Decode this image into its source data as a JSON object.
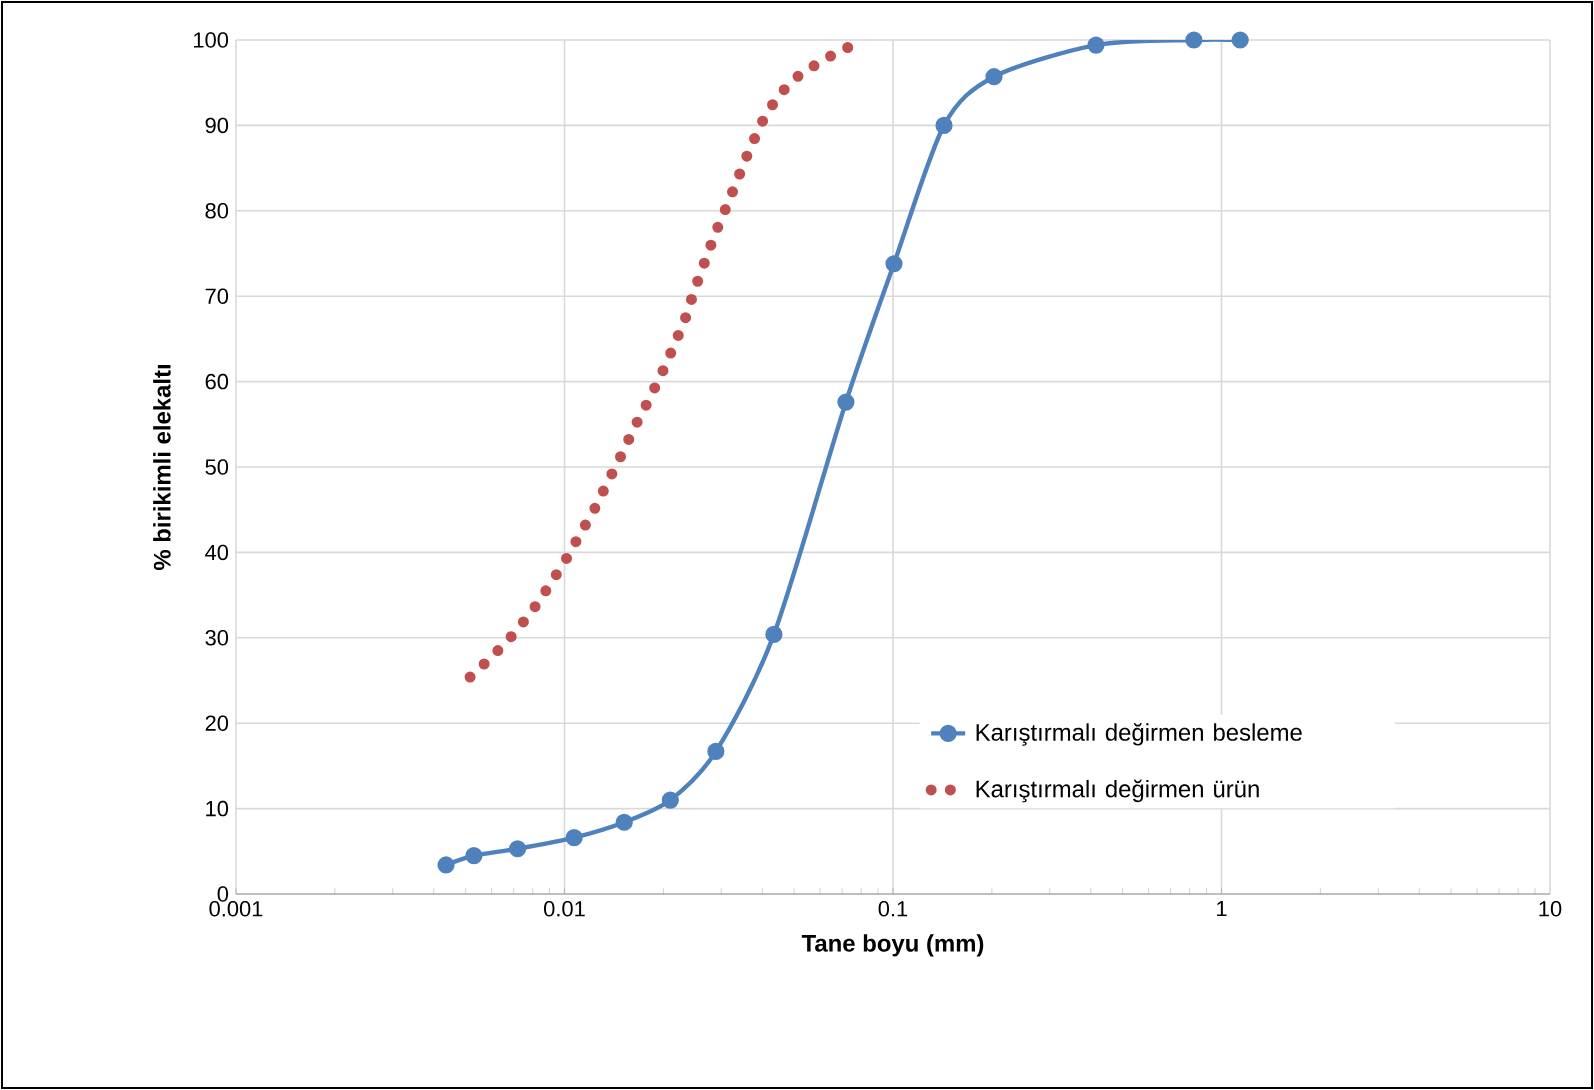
{
  "chart_data": {
    "type": "line",
    "xlabel": "Tane boyu (mm)",
    "ylabel": "% birikimli elekaltı",
    "log": "x",
    "xlim": [
      0.001,
      10
    ],
    "ylim": [
      0,
      100
    ],
    "xticks": [
      {
        "value": 0.001,
        "label": "0.001"
      },
      {
        "value": 0.01,
        "label": "0.01"
      },
      {
        "value": 0.1,
        "label": "0.1"
      },
      {
        "value": 1,
        "label": "1"
      },
      {
        "value": 10,
        "label": "10"
      }
    ],
    "yticks": [
      0,
      10,
      20,
      30,
      40,
      50,
      60,
      70,
      80,
      90,
      100
    ],
    "grid": true,
    "legend": "right",
    "series": [
      {
        "name": "Karıştırmalı değirmen besleme",
        "color": "#4f81bd",
        "marker": "circle",
        "line_style": "solid",
        "x": [
          0.00436,
          0.0053,
          0.0072,
          0.0107,
          0.0152,
          0.021,
          0.0289,
          0.0434,
          0.0719,
          0.1007,
          0.143,
          0.203,
          0.415,
          0.824,
          1.14
        ],
        "values": [
          3.4,
          4.5,
          5.3,
          6.6,
          8.4,
          11.0,
          16.7,
          30.4,
          57.6,
          73.8,
          90.0,
          95.7,
          99.4,
          100,
          100
        ]
      },
      {
        "name": "Karıştırmalı değirmen ürün",
        "color": "#c0504d",
        "marker": "none",
        "line_style": "dotted",
        "x": [
          0.00516,
          0.00602,
          0.00699,
          0.00796,
          0.00895,
          0.01001,
          0.01115,
          0.01235,
          0.01357,
          0.0149,
          0.01635,
          0.01804,
          0.0198,
          0.02154,
          0.02333,
          0.02491,
          0.02684,
          0.02879,
          0.03131,
          0.03388,
          0.0367,
          0.0401,
          0.0447,
          0.0519,
          0.0622,
          0.0753
        ],
        "values": [
          25.4,
          27.8,
          30.4,
          33.1,
          36.0,
          38.9,
          42.1,
          45.1,
          48.3,
          51.4,
          54.7,
          57.8,
          61.0,
          64.2,
          67.4,
          70.8,
          74.2,
          77.4,
          80.7,
          84.0,
          87.3,
          90.5,
          93.5,
          95.9,
          97.8,
          99.4
        ]
      }
    ]
  }
}
